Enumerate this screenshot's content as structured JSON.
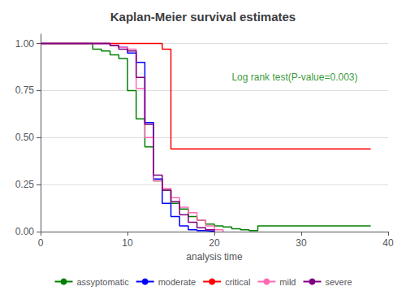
{
  "chart_data": {
    "type": "step",
    "title": "Kaplan-Meier survival estimates",
    "xlabel": "analysis time",
    "xlim": [
      0,
      40
    ],
    "ylim": [
      0,
      1.05
    ],
    "xticks": [
      0,
      10,
      20,
      30,
      40
    ],
    "yticks": [
      {
        "value": 0.0,
        "label": "0.00"
      },
      {
        "value": 0.25,
        "label": "0.25"
      },
      {
        "value": 0.5,
        "label": "0.50"
      },
      {
        "value": 0.75,
        "label": "0.75"
      },
      {
        "value": 1.0,
        "label": "1.00"
      }
    ],
    "grid": true,
    "legend": "bottom",
    "annotations": [
      {
        "text": "Log rank test(P-value=0.003)",
        "x": 22,
        "y": 0.82,
        "color": "#008000"
      }
    ],
    "series": [
      {
        "name": "assyptomatic",
        "color": "#008000",
        "x": [
          0,
          5,
          6,
          7,
          8,
          9,
          10,
          11,
          12,
          13,
          14,
          15,
          16,
          17,
          18,
          19,
          20,
          21,
          22,
          23,
          24,
          25,
          38
        ],
        "values": [
          1.0,
          1.0,
          0.97,
          0.96,
          0.94,
          0.92,
          0.75,
          0.6,
          0.45,
          0.27,
          0.22,
          0.15,
          0.12,
          0.08,
          0.06,
          0.04,
          0.03,
          0.025,
          0.015,
          0.01,
          0.005,
          0.03,
          0.03
        ]
      },
      {
        "name": "moderate",
        "color": "#0000ff",
        "x": [
          0,
          7,
          8,
          9,
          10,
          11,
          12,
          13,
          14,
          15,
          16,
          17,
          18,
          19,
          20
        ],
        "values": [
          1.0,
          1.0,
          0.99,
          0.98,
          0.95,
          0.9,
          0.58,
          0.28,
          0.15,
          0.08,
          0.03,
          0.01,
          0.005,
          0.002,
          0.0
        ]
      },
      {
        "name": "critical",
        "color": "#ff0000",
        "x": [
          0,
          13,
          14,
          15,
          38
        ],
        "values": [
          1.0,
          1.0,
          0.97,
          0.44,
          0.44
        ]
      },
      {
        "name": "mild",
        "color": "#ff69b4",
        "x": [
          0,
          7,
          8,
          9,
          10,
          11,
          12,
          13,
          14,
          15,
          16,
          17,
          18,
          19,
          20,
          21
        ],
        "values": [
          1.0,
          1.0,
          0.99,
          0.98,
          0.97,
          0.76,
          0.5,
          0.27,
          0.23,
          0.18,
          0.13,
          0.1,
          0.06,
          0.03,
          0.01,
          0.0
        ]
      },
      {
        "name": "severe",
        "color": "#800080",
        "x": [
          0,
          7,
          8,
          9,
          10,
          11,
          12,
          13,
          14,
          15,
          16,
          17,
          18,
          19,
          20
        ],
        "values": [
          1.0,
          1.0,
          0.99,
          0.97,
          0.96,
          0.82,
          0.57,
          0.3,
          0.22,
          0.16,
          0.09,
          0.05,
          0.02,
          0.01,
          0.0
        ]
      }
    ]
  }
}
